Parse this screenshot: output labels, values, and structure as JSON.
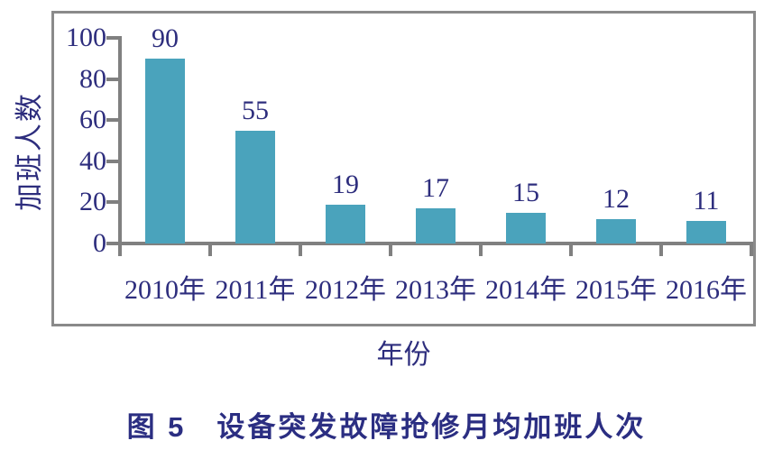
{
  "caption": "图 5　设备突发故障抢修月均加班人次",
  "chart_data": {
    "type": "bar",
    "categories": [
      "2010年",
      "2011年",
      "2012年",
      "2013年",
      "2014年",
      "2015年",
      "2016年"
    ],
    "values": [
      90,
      55,
      19,
      17,
      15,
      12,
      11
    ],
    "title": "图 5　设备突发故障抢修月均加班人次",
    "xlabel": "年份",
    "ylabel": "加班人数",
    "ylim": [
      0,
      100
    ],
    "yticks": [
      0,
      20,
      40,
      60,
      80,
      100
    ],
    "grid": false,
    "legend": "none",
    "bar_color": "#4AA3BC",
    "text_color": "#2D2D7D",
    "axis_color": "#808080",
    "frame_color": "#8A8A8A"
  }
}
